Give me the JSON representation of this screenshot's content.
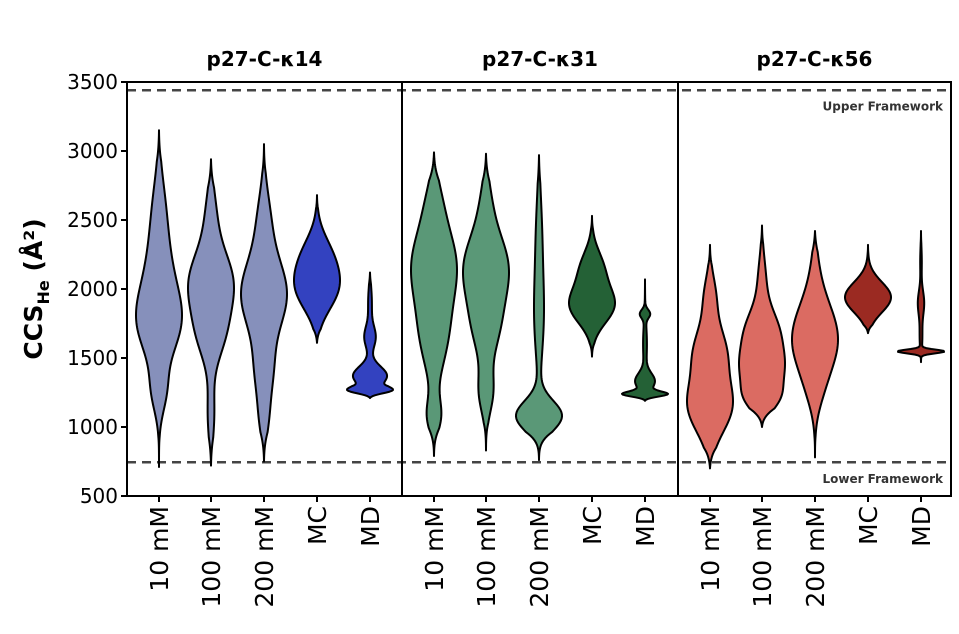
{
  "chart_data": {
    "type": "violin",
    "ylabel": {
      "main": "CCS",
      "sub": "He",
      "unit": " (Å²)"
    },
    "ylim": [
      500,
      3500
    ],
    "yticks": [
      500,
      1000,
      1500,
      2000,
      2500,
      3000,
      3500
    ],
    "categories": [
      "10 mM",
      "100 mM",
      "200 mM",
      "MC",
      "MD"
    ],
    "reference_lines": [
      {
        "name": "Upper Framework",
        "value": 3440
      },
      {
        "name": "Lower Framework",
        "value": 745
      }
    ],
    "panels": [
      {
        "title": "p27-C-κ14",
        "colors": {
          "light": "#8690bb",
          "dark": "#3342c0"
        },
        "violins": [
          {
            "category": "10 mM",
            "min": 710,
            "max": 3150,
            "peaks": [
              [
                1730,
                1.0,
                230
              ],
              [
                2050,
                0.8,
                320
              ],
              [
                1250,
                0.4,
                150
              ],
              [
                2600,
                0.3,
                250
              ]
            ]
          },
          {
            "category": "100 mM",
            "min": 720,
            "max": 2940,
            "peaks": [
              [
                2040,
                1.0,
                230
              ],
              [
                1650,
                0.45,
                180
              ],
              [
                1100,
                0.15,
                200
              ],
              [
                2550,
                0.2,
                200
              ]
            ]
          },
          {
            "category": "200 mM",
            "min": 750,
            "max": 3050,
            "peaks": [
              [
                1960,
                1.0,
                250
              ],
              [
                1400,
                0.35,
                200
              ],
              [
                1050,
                0.15,
                150
              ],
              [
                2500,
                0.25,
                220
              ]
            ]
          },
          {
            "category": "MC",
            "min": 1610,
            "max": 2680,
            "peaks": [
              [
                2000,
                1.0,
                160
              ],
              [
                2250,
                0.6,
                150
              ]
            ]
          },
          {
            "category": "MD",
            "min": 1210,
            "max": 2120,
            "peaks": [
              [
                1255,
                1.0,
                25
              ],
              [
                1370,
                0.55,
                70
              ],
              [
                1650,
                0.18,
                80
              ],
              [
                1900,
                0.06,
                120
              ]
            ]
          }
        ]
      },
      {
        "title": "p27-C-κ31",
        "colors": {
          "light": "#5a9877",
          "dark": "#246136"
        },
        "violins": [
          {
            "category": "10 mM",
            "min": 790,
            "max": 2990,
            "peaks": [
              [
                2180,
                1.0,
                270
              ],
              [
                1650,
                0.55,
                250
              ],
              [
                1080,
                0.3,
                120
              ],
              [
                2650,
                0.2,
                180
              ]
            ]
          },
          {
            "category": "100 mM",
            "min": 830,
            "max": 2980,
            "peaks": [
              [
                2150,
                1.0,
                250
              ],
              [
                1700,
                0.45,
                200
              ],
              [
                1250,
                0.3,
                150
              ],
              [
                2650,
                0.15,
                180
              ]
            ]
          },
          {
            "category": "200 mM",
            "min": 760,
            "max": 2970,
            "peaks": [
              [
                1080,
                1.0,
                110
              ],
              [
                1800,
                0.2,
                300
              ],
              [
                2400,
                0.12,
                300
              ]
            ]
          },
          {
            "category": "MC",
            "min": 1510,
            "max": 2530,
            "peaks": [
              [
                1880,
                1.0,
                130
              ],
              [
                2150,
                0.5,
                130
              ]
            ]
          },
          {
            "category": "MD",
            "min": 1190,
            "max": 2070,
            "peaks": [
              [
                1230,
                1.0,
                20
              ],
              [
                1330,
                0.25,
                60
              ],
              [
                1820,
                0.12,
                30
              ],
              [
                1600,
                0.05,
                150
              ]
            ]
          }
        ]
      },
      {
        "title": "p27-C-κ56",
        "colors": {
          "light": "#db6b62",
          "dark": "#9b2a22"
        },
        "violins": [
          {
            "category": "10 mM",
            "min": 700,
            "max": 2320,
            "peaks": [
              [
                1150,
                1.0,
                190
              ],
              [
                1550,
                0.7,
                180
              ],
              [
                1950,
                0.25,
                150
              ]
            ]
          },
          {
            "category": "100 mM",
            "min": 1000,
            "max": 2460,
            "peaks": [
              [
                1420,
                1.0,
                150
              ],
              [
                1700,
                0.75,
                150
              ],
              [
                1200,
                0.6,
                100
              ],
              [
                2050,
                0.2,
                180
              ]
            ]
          },
          {
            "category": "200 mM",
            "min": 780,
            "max": 2420,
            "peaks": [
              [
                1550,
                1.0,
                200
              ],
              [
                1800,
                0.7,
                200
              ],
              [
                1250,
                0.25,
                150
              ],
              [
                2150,
                0.15,
                180
              ]
            ]
          },
          {
            "category": "MC",
            "min": 1680,
            "max": 2320,
            "peaks": [
              [
                1940,
                1.0,
                110
              ]
            ]
          },
          {
            "category": "MD",
            "min": 1470,
            "max": 2420,
            "peaks": [
              [
                1545,
                1.0,
                14
              ],
              [
                1900,
                0.12,
                90
              ],
              [
                1650,
                0.05,
                100
              ],
              [
                2200,
                0.03,
                100
              ]
            ]
          }
        ]
      }
    ]
  }
}
